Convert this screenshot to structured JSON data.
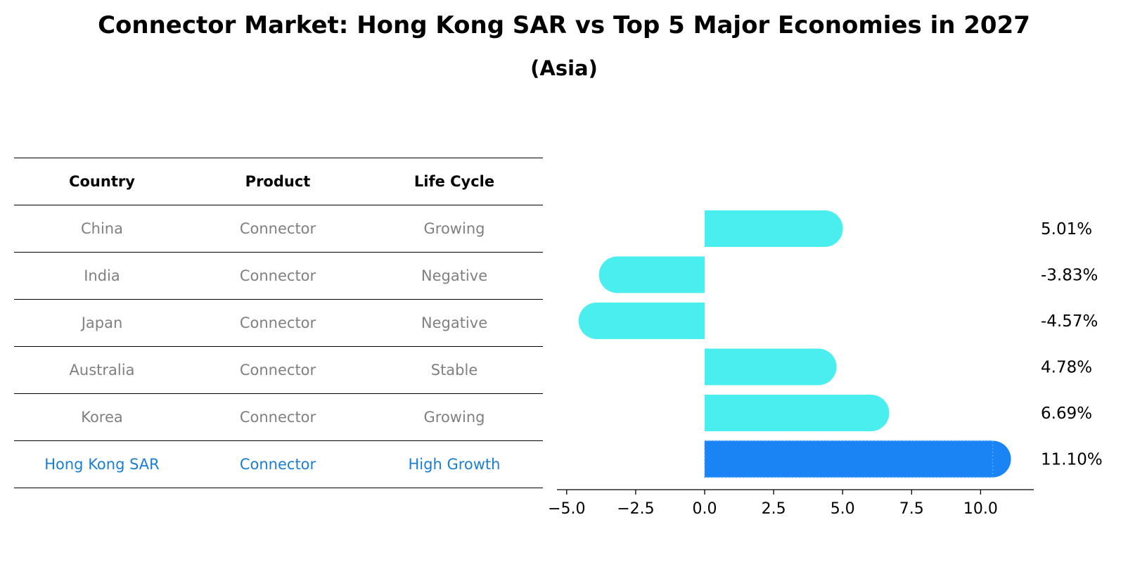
{
  "title": "Connector Market: Hong Kong SAR vs Top 5 Major Economies in 2027",
  "subtitle": "(Asia)",
  "table": {
    "headers": [
      "Country",
      "Product",
      "Life Cycle"
    ],
    "rows": [
      [
        "China",
        "Connector",
        "Growing"
      ],
      [
        "India",
        "Connector",
        "Negative"
      ],
      [
        "Japan",
        "Connector",
        "Negative"
      ],
      [
        "Australia",
        "Connector",
        "Stable"
      ],
      [
        "Korea",
        "Connector",
        "Growing"
      ],
      [
        "Hong Kong SAR",
        "Connector",
        "High Growth"
      ]
    ]
  },
  "colors": {
    "bar": "#4aeeee",
    "highlight": "#1a84f5",
    "highlight_text": "#1a7fd4",
    "muted_text": "#808080"
  },
  "chart_data": {
    "type": "bar",
    "orientation": "horizontal",
    "categories": [
      "China",
      "India",
      "Japan",
      "Australia",
      "Korea",
      "Hong Kong SAR"
    ],
    "values": [
      5.01,
      -3.83,
      -4.57,
      4.78,
      6.69,
      11.1
    ],
    "value_labels": [
      "5.01%",
      "-3.83%",
      "-4.57%",
      "4.78%",
      "6.69%",
      "11.10%"
    ],
    "highlight": "Hong Kong SAR",
    "xlim": [
      -5.3,
      12.0
    ],
    "xticks": [
      -5.0,
      -2.5,
      0.0,
      2.5,
      5.0,
      7.5,
      10.0
    ],
    "xtick_labels": [
      "−5.0",
      "−2.5",
      "0.0",
      "2.5",
      "5.0",
      "7.5",
      "10.0"
    ],
    "grid": false
  }
}
